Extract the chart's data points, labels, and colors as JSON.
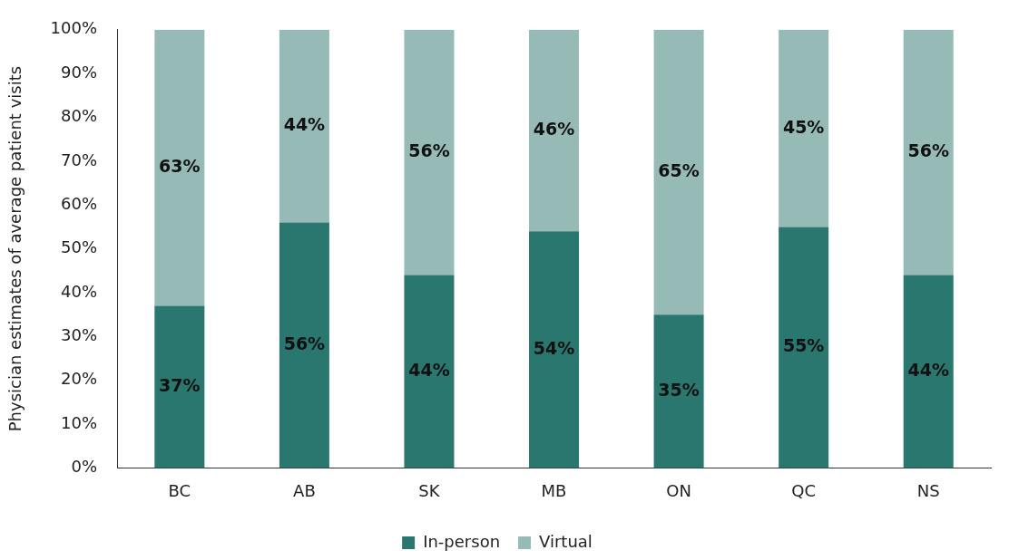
{
  "chart_data": {
    "type": "bar",
    "stacked": true,
    "ylabel": "Physician estimates of average patient visits",
    "categories": [
      "BC",
      "AB",
      "SK",
      "MB",
      "ON",
      "QC",
      "NS"
    ],
    "series": [
      {
        "name": "In-person",
        "color": "#2a7770",
        "values": [
          37,
          56,
          44,
          54,
          35,
          55,
          44
        ],
        "value_labels": [
          "37%",
          "56%",
          "44%",
          "54%",
          "35%",
          "55%",
          "44%"
        ]
      },
      {
        "name": "Virtual",
        "color": "#96bbb7",
        "values": [
          63,
          44,
          56,
          46,
          65,
          45,
          56
        ],
        "value_labels": [
          "63%",
          "44%",
          "56%",
          "46%",
          "65%",
          "45%",
          "56%"
        ]
      }
    ],
    "ylim": [
      0,
      100
    ],
    "yticks": [
      {
        "value": 0,
        "label": "0%"
      },
      {
        "value": 10,
        "label": "10%"
      },
      {
        "value": 20,
        "label": "20%"
      },
      {
        "value": 30,
        "label": "30%"
      },
      {
        "value": 40,
        "label": "40%"
      },
      {
        "value": 50,
        "label": "50%"
      },
      {
        "value": 60,
        "label": "60%"
      },
      {
        "value": 70,
        "label": "70%"
      },
      {
        "value": 80,
        "label": "80%"
      },
      {
        "value": 90,
        "label": "90%"
      },
      {
        "value": 100,
        "label": "100%"
      }
    ],
    "grid": false,
    "legend": "bottom"
  }
}
